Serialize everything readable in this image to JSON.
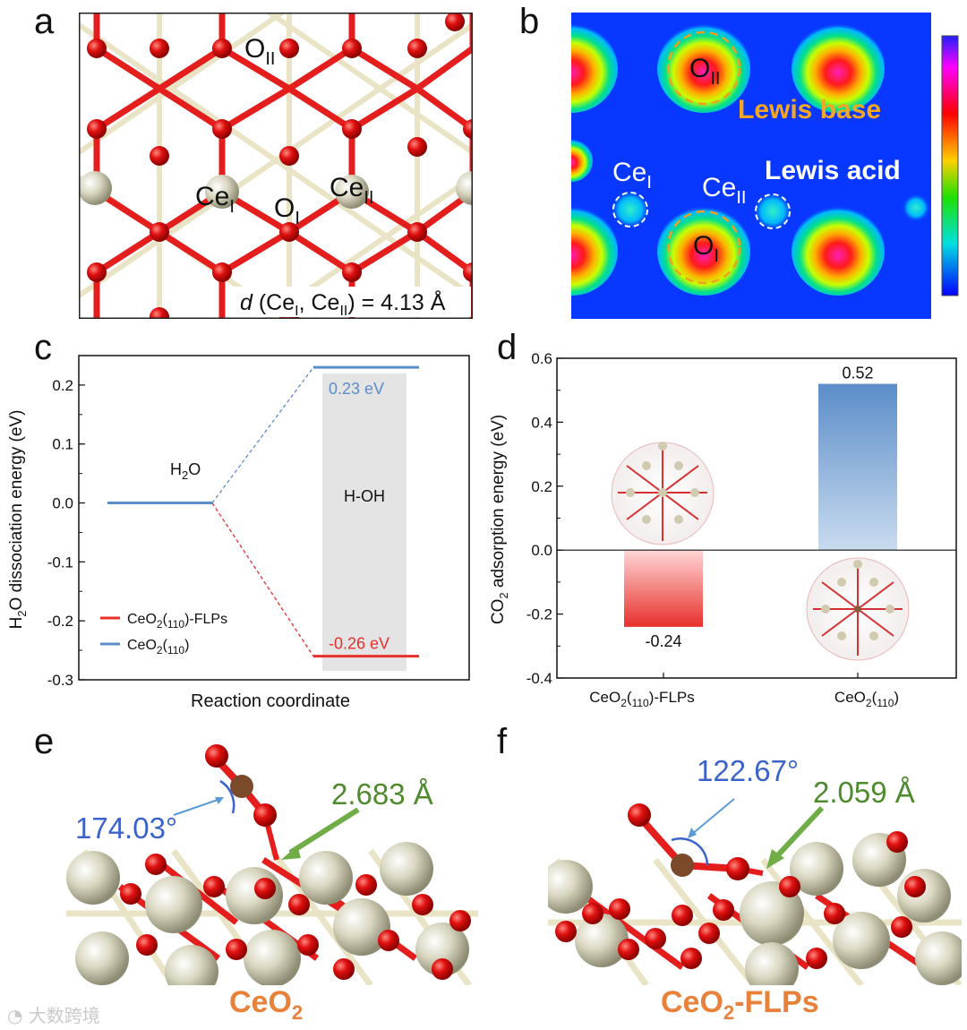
{
  "panels": {
    "a": {
      "letter": "a",
      "labels": {
        "o2": "II",
        "ce1": "I",
        "o1": "I",
        "ce2": "II"
      },
      "distance": {
        "d": "d",
        "open": " (Ce",
        "sub1": "I",
        "mid": ", Ce",
        "sub2": "II",
        "close": ") = 4.13 Å"
      }
    },
    "b": {
      "letter": "b",
      "lewis_base": "Lewis base",
      "lewis_acid": "Lewis acid",
      "labels": {
        "o2": "II",
        "ce1": "I",
        "ce2": "II",
        "o1": "I"
      }
    },
    "c": {
      "letter": "c"
    },
    "d": {
      "letter": "d"
    },
    "e": {
      "letter": "e",
      "angle": "174.03°",
      "distance": "2.683 Å",
      "title": "CeO",
      "title_sub": "2"
    },
    "f": {
      "letter": "f",
      "angle": "122.67°",
      "distance": "2.059 Å",
      "title_main": "CeO",
      "title_sub": "2",
      "title_rest": "-FLPs"
    }
  },
  "chart_data": [
    {
      "type": "line",
      "panel": "c",
      "ylabel": "H2O dissociation energy (eV)",
      "xlabel": "Reaction coordinate",
      "ylim": [
        -0.3,
        0.25
      ],
      "yticks": [
        "0.2",
        "0.1",
        "0.0",
        "-0.1",
        "-0.2",
        "-0.3"
      ],
      "states": {
        "initial": "H2O",
        "final": "H-OH"
      },
      "series": [
        {
          "name": "CeO2(110)-FLPs",
          "color": "#e8302b",
          "values": [
            0.0,
            -0.26
          ],
          "label": "-0.26 eV"
        },
        {
          "name": "CeO2(110)",
          "color": "#5b8dc9",
          "values": [
            0.0,
            0.23
          ],
          "label": "0.23 eV"
        }
      ],
      "legend": {
        "position": "bottom-left"
      }
    },
    {
      "type": "bar",
      "panel": "d",
      "ylabel": "CO2 adsorption energy (eV)",
      "ylim": [
        -0.4,
        0.6
      ],
      "yticks": [
        "0.6",
        "0.4",
        "0.2",
        "0.0",
        "-0.2",
        "-0.4"
      ],
      "categories": [
        "CeO2(110)-FLPs",
        "CeO2(110)"
      ],
      "values": [
        -0.24,
        0.52
      ],
      "value_labels": [
        "-0.24",
        "0.52"
      ],
      "colors": [
        "#e8302b",
        "#5b8dc9"
      ]
    }
  ],
  "watermark": "大数跨境"
}
